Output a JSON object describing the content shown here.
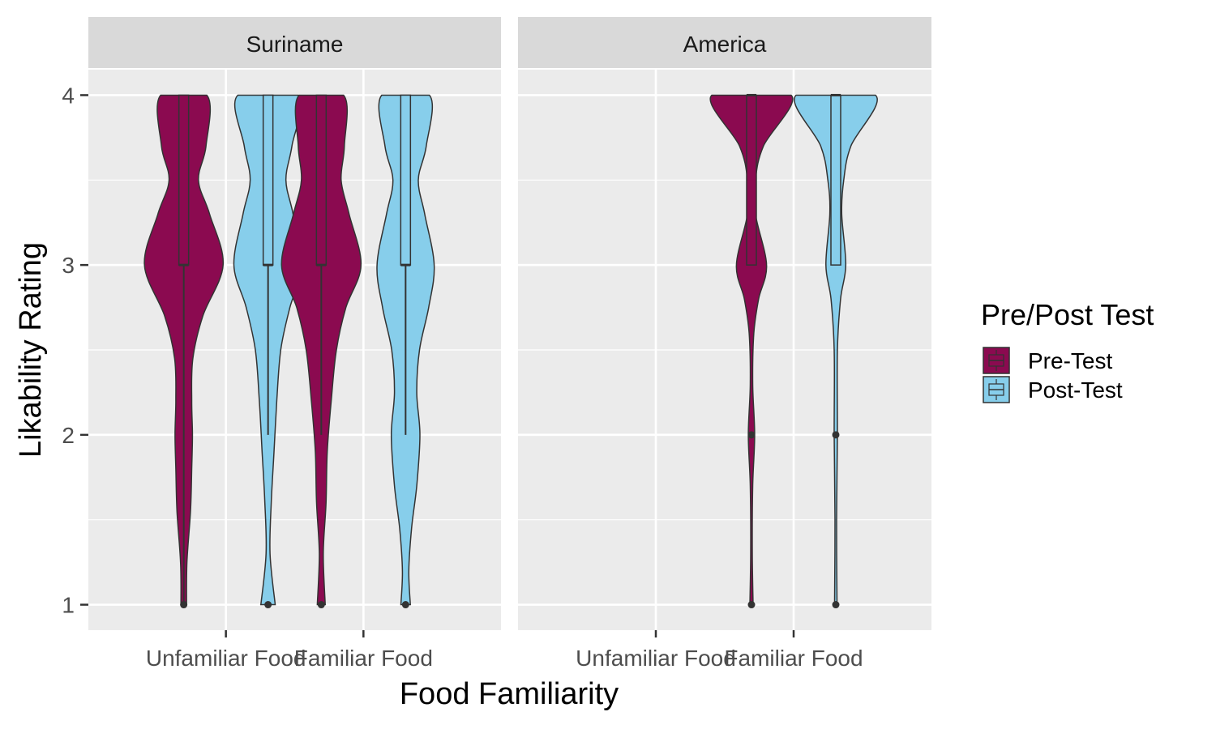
{
  "chart_data": {
    "type": "violin",
    "xlabel": "Food Familiarity",
    "ylabel": "Likability Rating",
    "ylim": [
      0.85,
      4.15
    ],
    "y_ticks": [
      1,
      2,
      3,
      4
    ],
    "categories": [
      "Unfamiliar Food",
      "Familiar Food"
    ],
    "grid": true,
    "legend": {
      "title": "Pre/Post Test",
      "position": "right",
      "entries": [
        {
          "name": "Pre-Test",
          "color": "#8B0A50"
        },
        {
          "name": "Post-Test",
          "color": "#87CEEB"
        }
      ]
    },
    "panels": [
      {
        "title": "Suriname",
        "groups": [
          {
            "category": "Unfamiliar Food",
            "series": "Pre-Test",
            "density": [
              [
                1.0,
                0.07
              ],
              [
                1.25,
                0.08
              ],
              [
                1.55,
                0.17
              ],
              [
                1.8,
                0.2
              ],
              [
                2.0,
                0.22
              ],
              [
                2.2,
                0.2
              ],
              [
                2.45,
                0.23
              ],
              [
                2.7,
                0.48
              ],
              [
                3.0,
                0.99
              ],
              [
                3.3,
                0.65
              ],
              [
                3.5,
                0.37
              ],
              [
                3.7,
                0.56
              ],
              [
                4.0,
                0.58
              ]
            ],
            "box": {
              "min": 1,
              "q1": 3,
              "median": 3,
              "q3": 4,
              "max": 4,
              "outliers": [
                1
              ]
            }
          },
          {
            "category": "Unfamiliar Food",
            "series": "Post-Test",
            "density": [
              [
                1.0,
                0.18
              ],
              [
                1.3,
                0.05
              ],
              [
                1.6,
                0.08
              ],
              [
                1.9,
                0.15
              ],
              [
                2.2,
                0.22
              ],
              [
                2.5,
                0.32
              ],
              [
                2.75,
                0.55
              ],
              [
                3.0,
                0.86
              ],
              [
                3.3,
                0.63
              ],
              [
                3.5,
                0.45
              ],
              [
                3.7,
                0.6
              ],
              [
                4.0,
                0.76
              ]
            ],
            "box": {
              "min": 2,
              "q1": 3,
              "median": 3,
              "q3": 4,
              "max": 4,
              "outliers": [
                1
              ]
            }
          },
          {
            "category": "Familiar Food",
            "series": "Pre-Test",
            "density": [
              [
                1.0,
                0.1
              ],
              [
                1.3,
                0.05
              ],
              [
                1.6,
                0.12
              ],
              [
                1.9,
                0.15
              ],
              [
                2.2,
                0.25
              ],
              [
                2.5,
                0.38
              ],
              [
                2.75,
                0.62
              ],
              [
                3.0,
                1.0
              ],
              [
                3.3,
                0.7
              ],
              [
                3.5,
                0.5
              ],
              [
                3.7,
                0.58
              ],
              [
                4.0,
                0.56
              ]
            ],
            "box": {
              "min": 2,
              "q1": 3,
              "median": 3,
              "q3": 4,
              "max": 4,
              "outliers": [
                1
              ]
            }
          },
          {
            "category": "Familiar Food",
            "series": "Post-Test",
            "density": [
              [
                1.0,
                0.12
              ],
              [
                1.2,
                0.08
              ],
              [
                1.45,
                0.15
              ],
              [
                1.7,
                0.28
              ],
              [
                2.0,
                0.36
              ],
              [
                2.25,
                0.28
              ],
              [
                2.5,
                0.35
              ],
              [
                2.75,
                0.58
              ],
              [
                3.0,
                0.72
              ],
              [
                3.3,
                0.48
              ],
              [
                3.5,
                0.32
              ],
              [
                3.7,
                0.52
              ],
              [
                4.0,
                0.6
              ]
            ],
            "box": {
              "min": 2,
              "q1": 3,
              "median": 3,
              "q3": 4,
              "max": 4,
              "outliers": [
                1
              ]
            }
          }
        ]
      },
      {
        "title": "America",
        "groups": [
          {
            "category": "Familiar Food",
            "series": "Pre-Test",
            "density": [
              [
                1.0,
                0.04
              ],
              [
                1.3,
                0.02
              ],
              [
                1.7,
                0.03
              ],
              [
                2.0,
                0.08
              ],
              [
                2.3,
                0.03
              ],
              [
                2.6,
                0.06
              ],
              [
                2.8,
                0.18
              ],
              [
                3.0,
                0.38
              ],
              [
                3.3,
                0.1
              ],
              [
                3.5,
                0.1
              ],
              [
                3.7,
                0.3
              ],
              [
                4.0,
                1.0
              ]
            ],
            "box": {
              "min": 3,
              "q1": 3,
              "median": 4,
              "q3": 4,
              "max": 4,
              "outliers": [
                1,
                2
              ]
            }
          },
          {
            "category": "Familiar Food",
            "series": "Post-Test",
            "density": [
              [
                1.0,
                0.03
              ],
              [
                1.5,
                0.02
              ],
              [
                2.0,
                0.04
              ],
              [
                2.5,
                0.04
              ],
              [
                2.8,
                0.12
              ],
              [
                3.0,
                0.25
              ],
              [
                3.3,
                0.15
              ],
              [
                3.5,
                0.2
              ],
              [
                3.7,
                0.38
              ],
              [
                4.0,
                1.0
              ]
            ],
            "box": {
              "min": 3,
              "q1": 3,
              "median": 4,
              "q3": 4,
              "max": 4,
              "outliers": [
                1,
                2
              ]
            }
          }
        ]
      }
    ]
  }
}
